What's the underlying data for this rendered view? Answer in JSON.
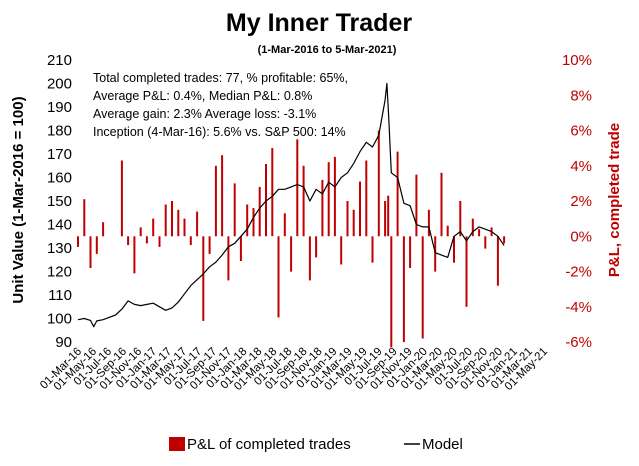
{
  "chart_data": {
    "type": "line+bar",
    "title": "My Inner Trader",
    "subtitle": "(1-Mar-2016 to 5-Mar-2021)",
    "ylabel_left": "Unit Value (1-Mar-2016 = 100)",
    "ylabel_right": "P&L, completed trade",
    "ylim_left": [
      90,
      210
    ],
    "yticks_left": [
      "90",
      "100",
      "110",
      "120",
      "130",
      "140",
      "150",
      "160",
      "170",
      "180",
      "190",
      "200",
      "210"
    ],
    "ylim_right": [
      -6,
      10
    ],
    "yticks_right": [
      "-6%",
      "-4%",
      "-2%",
      "0%",
      "2%",
      "4%",
      "6%",
      "8%",
      "10%"
    ],
    "x_tick_labels": [
      "01-Mar-16",
      "01-May-16",
      "01-Jul-16",
      "01-Sep-16",
      "01-Nov-16",
      "01-Jan-17",
      "01-Mar-17",
      "01-May-17",
      "01-Jul-17",
      "01-Sep-17",
      "01-Nov-17",
      "01-Jan-18",
      "01-Mar-18",
      "01-May-18",
      "01-Jul-18",
      "01-Sep-18",
      "01-Nov-18",
      "01-Jan-19",
      "01-Mar-19",
      "01-May-19",
      "01-Jul-19",
      "01-Sep-19",
      "01-Nov-19",
      "01-Jan-20",
      "01-Mar-20",
      "01-May-20",
      "01-Jul-20",
      "01-Sep-20",
      "01-Nov-20",
      "01-Jan-21",
      "01-Mar-21",
      "01-May-21"
    ],
    "annotations": [
      "Total completed trades: 77, % profitable: 65%,",
      "Average P&L: 0.4%, Median P&L: 0.8%",
      "Average gain: 2.3% Average loss: -3.1%",
      "Inception (4-Mar-16): 5.6% vs. S&P 500: 14%"
    ],
    "legend": [
      {
        "label": "P&L of completed trades",
        "color": "#c00000",
        "kind": "bar"
      },
      {
        "label": "Model",
        "color": "#000000",
        "kind": "line"
      }
    ],
    "series_line": {
      "name": "Model",
      "color": "#000000",
      "points": [
        [
          0,
          99.5
        ],
        [
          1,
          100
        ],
        [
          2,
          99.2
        ],
        [
          2.5,
          96.5
        ],
        [
          3,
          99
        ],
        [
          4,
          99.5
        ],
        [
          5,
          100.5
        ],
        [
          6,
          101.5
        ],
        [
          7,
          104
        ],
        [
          8,
          107.5
        ],
        [
          9,
          106
        ],
        [
          10,
          105.5
        ],
        [
          11,
          106
        ],
        [
          12,
          106.5
        ],
        [
          13,
          105
        ],
        [
          14,
          103.5
        ],
        [
          15,
          104.5
        ],
        [
          16,
          107
        ],
        [
          17,
          110.5
        ],
        [
          18,
          114
        ],
        [
          19,
          116.5
        ],
        [
          20,
          119
        ],
        [
          21,
          122
        ],
        [
          22,
          124
        ],
        [
          23,
          127
        ],
        [
          24,
          130.5
        ],
        [
          25,
          132
        ],
        [
          26,
          135
        ],
        [
          27,
          138
        ],
        [
          28,
          143
        ],
        [
          29,
          147
        ],
        [
          30,
          150
        ],
        [
          31,
          152
        ],
        [
          32,
          155
        ],
        [
          33,
          155
        ],
        [
          34,
          156
        ],
        [
          35,
          157
        ],
        [
          36,
          156
        ],
        [
          37,
          150
        ],
        [
          38,
          155
        ],
        [
          39,
          153
        ],
        [
          40,
          158
        ],
        [
          41,
          156
        ],
        [
          42,
          160
        ],
        [
          43,
          162
        ],
        [
          44,
          166
        ],
        [
          45,
          171
        ],
        [
          46,
          175
        ],
        [
          47,
          173
        ],
        [
          48,
          178
        ],
        [
          49,
          193
        ],
        [
          49.3,
          200
        ],
        [
          49.6,
          185
        ],
        [
          50,
          162
        ],
        [
          51,
          160
        ],
        [
          52,
          149
        ],
        [
          53,
          148
        ],
        [
          54,
          140
        ],
        [
          55,
          139
        ],
        [
          56,
          139
        ],
        [
          57,
          128
        ],
        [
          58,
          127
        ],
        [
          59,
          126
        ],
        [
          60,
          135
        ],
        [
          61,
          137
        ],
        [
          62,
          133
        ],
        [
          63,
          137
        ],
        [
          64,
          139
        ],
        [
          65,
          138
        ],
        [
          66,
          137
        ],
        [
          67,
          135
        ],
        [
          68,
          131
        ]
      ]
    },
    "series_bars": {
      "name": "P&L of completed trades",
      "color": "#c00000",
      "points": [
        [
          0,
          -0.6
        ],
        [
          1,
          2.1
        ],
        [
          2,
          -1.8
        ],
        [
          3,
          -1.0
        ],
        [
          4,
          0.8
        ],
        [
          7,
          4.3
        ],
        [
          8,
          -0.5
        ],
        [
          9,
          -2.1
        ],
        [
          10,
          0.5
        ],
        [
          11,
          -0.4
        ],
        [
          12,
          1.0
        ],
        [
          13,
          -0.6
        ],
        [
          14,
          1.8
        ],
        [
          15,
          2.0
        ],
        [
          16,
          1.5
        ],
        [
          17,
          1.0
        ],
        [
          18,
          -0.5
        ],
        [
          19,
          1.4
        ],
        [
          20,
          -4.8
        ],
        [
          21,
          -1.0
        ],
        [
          22,
          4.0
        ],
        [
          23,
          4.6
        ],
        [
          24,
          -2.5
        ],
        [
          25,
          3.0
        ],
        [
          26,
          -1.4
        ],
        [
          27,
          1.8
        ],
        [
          28,
          1.6
        ],
        [
          29,
          2.8
        ],
        [
          30,
          4.1
        ],
        [
          31,
          5.0
        ],
        [
          32,
          -4.6
        ],
        [
          33,
          1.3
        ],
        [
          34,
          -2.0
        ],
        [
          35,
          5.5
        ],
        [
          36,
          4.0
        ],
        [
          37,
          -2.5
        ],
        [
          38,
          -1.2
        ],
        [
          39,
          3.2
        ],
        [
          40,
          4.2
        ],
        [
          41,
          4.5
        ],
        [
          42,
          -1.6
        ],
        [
          43,
          2.0
        ],
        [
          44,
          1.5
        ],
        [
          45,
          3.1
        ],
        [
          46,
          4.3
        ],
        [
          47,
          -1.5
        ],
        [
          48,
          6.0
        ],
        [
          49,
          2.0
        ],
        [
          49.5,
          2.3
        ],
        [
          50,
          -6.3
        ],
        [
          51,
          4.8
        ],
        [
          52,
          -6.0
        ],
        [
          53,
          -1.8
        ],
        [
          54,
          3.5
        ],
        [
          55,
          -5.8
        ],
        [
          56,
          1.5
        ],
        [
          57,
          -2.0
        ],
        [
          58,
          3.6
        ],
        [
          59,
          0.6
        ],
        [
          60,
          -1.5
        ],
        [
          61,
          2.0
        ],
        [
          62,
          -4.0
        ],
        [
          63,
          1.0
        ],
        [
          64,
          0.4
        ],
        [
          65,
          -0.7
        ],
        [
          66,
          0.5
        ],
        [
          67,
          -2.8
        ],
        [
          68,
          -0.4
        ]
      ]
    }
  }
}
